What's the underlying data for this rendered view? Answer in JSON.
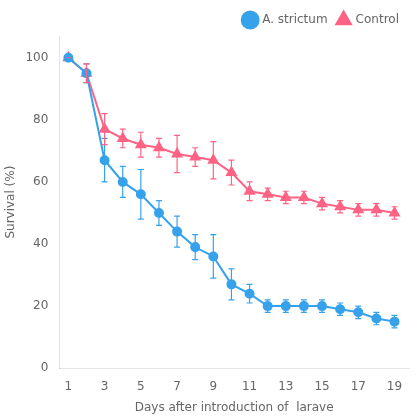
{
  "chart_data": {
    "type": "line",
    "xlabel": "Days after introduction of  larave",
    "ylabel": "Survival (%)",
    "xlim": [
      0.5,
      19.8
    ],
    "ylim": [
      0,
      107
    ],
    "xticks": [
      1,
      3,
      5,
      7,
      9,
      11,
      13,
      15,
      17,
      19
    ],
    "yticks": [
      0,
      20,
      40,
      60,
      80,
      100
    ],
    "grid": false,
    "legend": "upper right",
    "series": [
      {
        "name": "A. strictum",
        "marker": "circle",
        "x": [
          1,
          2,
          3,
          4,
          5,
          6,
          7,
          8,
          9,
          10,
          11,
          12,
          13,
          14,
          15,
          16,
          17,
          18,
          19
        ],
        "values": [
          100,
          95,
          67,
          60,
          56,
          50,
          44,
          39,
          36,
          27,
          24,
          20,
          20,
          20,
          20,
          19,
          18,
          16,
          15
        ],
        "errors": [
          0,
          3,
          7,
          5,
          8,
          4,
          5,
          4,
          7,
          5,
          3,
          2,
          2,
          2,
          2,
          2,
          2,
          2,
          2
        ]
      },
      {
        "name": "Control",
        "marker": "triangle",
        "x": [
          1,
          2,
          3,
          4,
          5,
          6,
          7,
          8,
          9,
          10,
          11,
          12,
          13,
          14,
          15,
          16,
          17,
          18,
          19
        ],
        "values": [
          100,
          95,
          77,
          74,
          72,
          71,
          69,
          68,
          67,
          63,
          57,
          56,
          55,
          55,
          53,
          52,
          51,
          51,
          50
        ],
        "errors": [
          0,
          3,
          5,
          3,
          4,
          3,
          6,
          3,
          6,
          4,
          3,
          2,
          2,
          2,
          2,
          2,
          2,
          2,
          2
        ]
      }
    ]
  }
}
